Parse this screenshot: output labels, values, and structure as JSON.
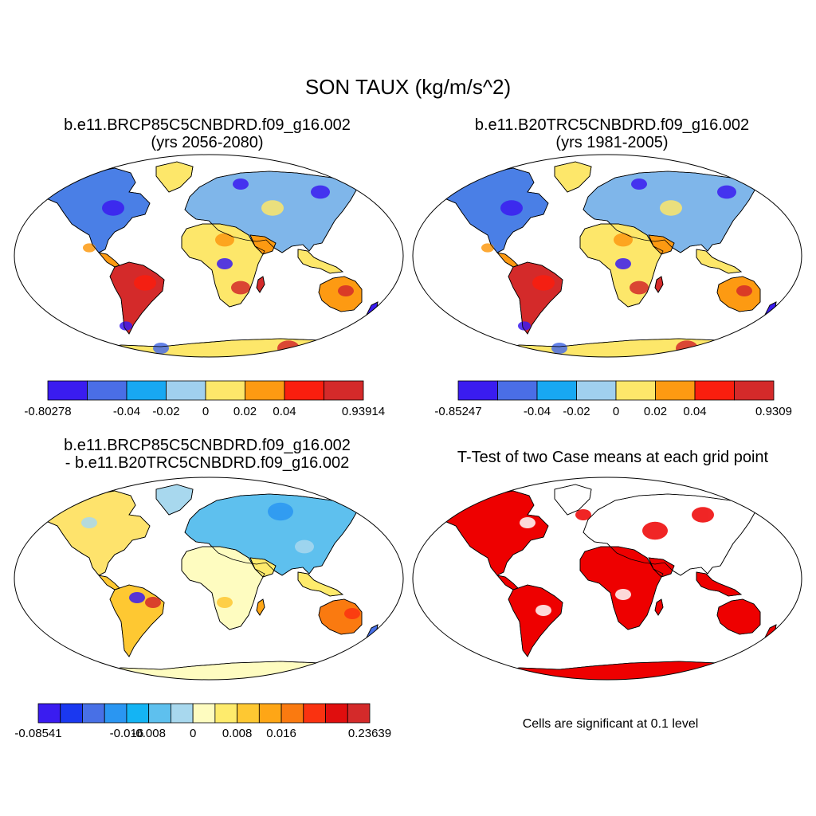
{
  "figure": {
    "title": "SON TAUX (kg/m/s^2)"
  },
  "panels": [
    {
      "id": "case",
      "title_line1": "b.e11.BRCP85C5CNBDRD.f09_g16.002",
      "title_line2": "(yrs 2056-2080)",
      "colorbar": {
        "colors": [
          "#3a1cf0",
          "#4a6ee6",
          "#18a8f2",
          "#a0d0ee",
          "#fde76a",
          "#fd9a12",
          "#fa1e0e",
          "#d42a2a"
        ],
        "labels": [
          "-0.80278",
          "-0.04",
          "-0.02",
          "0",
          "0.02",
          "0.04",
          "0.93914"
        ]
      }
    },
    {
      "id": "control",
      "title_line1": "b.e11.B20TRC5CNBDRD.f09_g16.002",
      "title_line2": "(yrs 1981-2005)",
      "colorbar": {
        "colors": [
          "#3a1cf0",
          "#4a6ee6",
          "#18a8f2",
          "#a0d0ee",
          "#fde76a",
          "#fd9a12",
          "#fa1e0e",
          "#d42a2a"
        ],
        "labels": [
          "-0.85247",
          "-0.04",
          "-0.02",
          "0",
          "0.02",
          "0.04",
          "0.9309"
        ]
      }
    },
    {
      "id": "difference",
      "title_line1": "b.e11.BRCP85C5CNBDRD.f09_g16.002",
      "title_line2": "- b.e11.B20TRC5CNBDRD.f09_g16.002",
      "colorbar": {
        "colors": [
          "#3a1cf0",
          "#1a38f0",
          "#4870e6",
          "#2a96f2",
          "#14b4f4",
          "#5ec0ee",
          "#a8d8ee",
          "#fefcc0",
          "#feeb6c",
          "#fec832",
          "#fea616",
          "#fa7a10",
          "#fa3210",
          "#e00e0e",
          "#d42a2a"
        ],
        "labels": [
          "-0.08541",
          "-0.016",
          "-0.008",
          "0",
          "0.008",
          "0.016",
          "0.23639"
        ]
      }
    },
    {
      "id": "ttest",
      "title_line1": "T-Test of two Case means at each grid point",
      "note": "Cells are significant at 0.1 level",
      "significant_color": "#ee0000"
    }
  ]
}
